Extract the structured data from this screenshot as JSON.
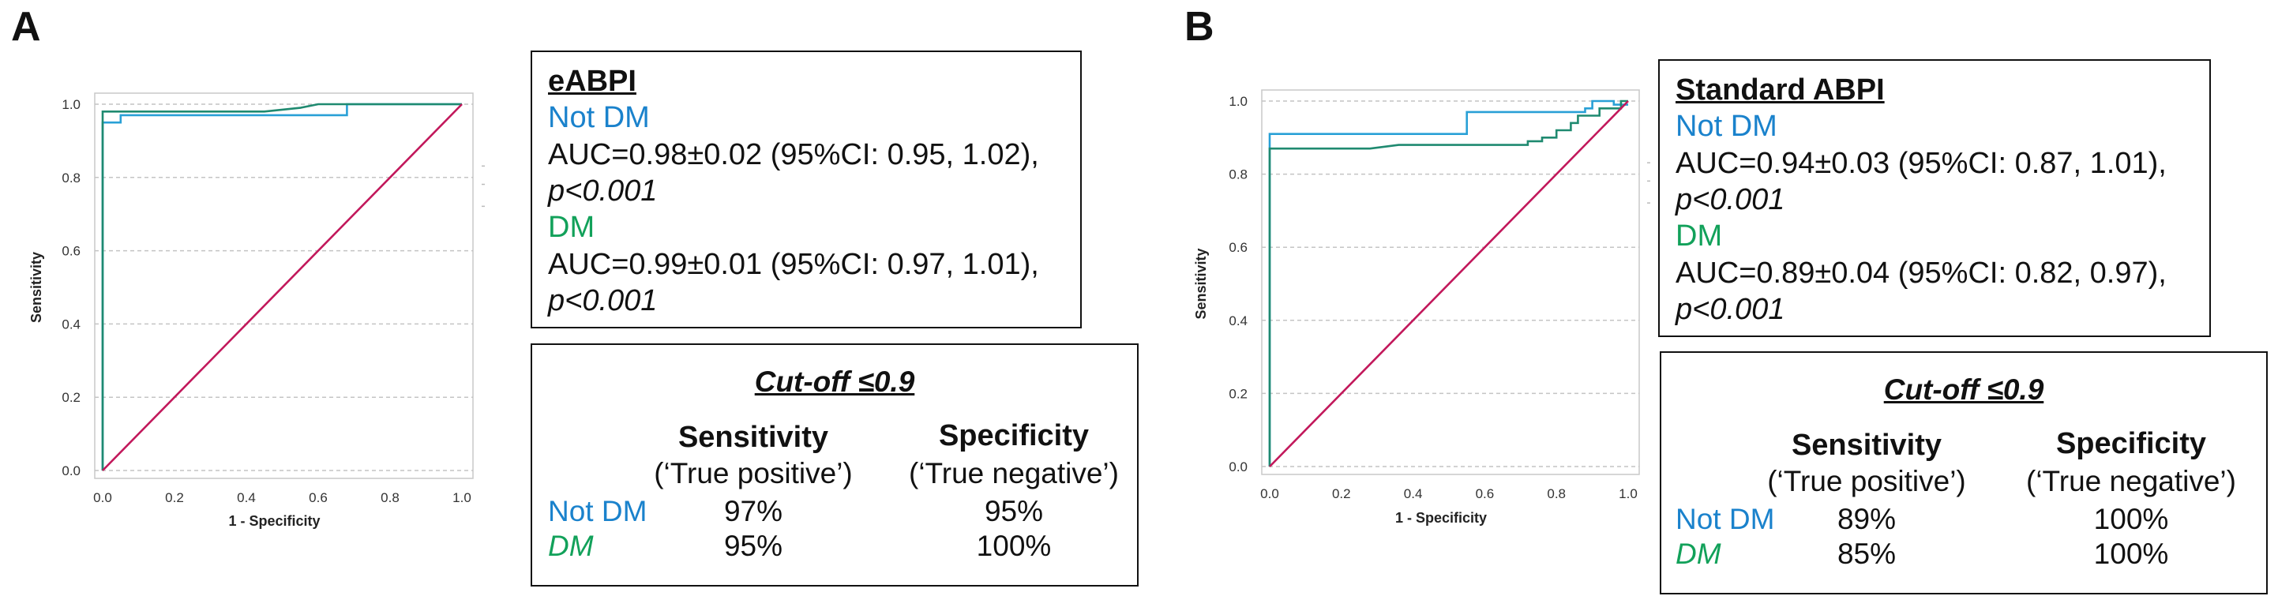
{
  "chart_data": [
    {
      "type": "line",
      "panel": "A",
      "title": "",
      "xlabel": "1 - Specificity",
      "ylabel": "Sensitivity",
      "xlim": [
        0,
        1
      ],
      "ylim": [
        0,
        1
      ],
      "x_ticks": [
        "0.0",
        "0.2",
        "0.4",
        "0.6",
        "0.8",
        "1.0"
      ],
      "y_ticks": [
        "0.0",
        "0.2",
        "0.4",
        "0.6",
        "0.8",
        "1.0"
      ],
      "grid": "horizontal dashed",
      "series": [
        {
          "name": "Not DM",
          "color": "#29a0d6",
          "points": [
            [
              0,
              0
            ],
            [
              0,
              0.95
            ],
            [
              0.05,
              0.95
            ],
            [
              0.05,
              0.97
            ],
            [
              0.68,
              0.97
            ],
            [
              0.68,
              1.0
            ],
            [
              1.0,
              1.0
            ]
          ]
        },
        {
          "name": "DM",
          "color": "#1f8a70",
          "points": [
            [
              0,
              0
            ],
            [
              0,
              0.98
            ],
            [
              0.45,
              0.98
            ],
            [
              0.55,
              0.99
            ],
            [
              0.6,
              1.0
            ],
            [
              1.0,
              1.0
            ]
          ]
        },
        {
          "name": "Reference line",
          "color": "#c2185b",
          "points": [
            [
              0,
              0
            ],
            [
              1,
              1
            ]
          ]
        }
      ]
    },
    {
      "type": "line",
      "panel": "B",
      "title": "",
      "xlabel": "1 - Specificity",
      "ylabel": "Sensitivity",
      "xlim": [
        0,
        1
      ],
      "ylim": [
        0,
        1
      ],
      "x_ticks": [
        "0.0",
        "0.2",
        "0.4",
        "0.6",
        "0.8",
        "1.0"
      ],
      "y_ticks": [
        "0.0",
        "0.2",
        "0.4",
        "0.6",
        "0.8",
        "1.0"
      ],
      "grid": "horizontal dashed",
      "series": [
        {
          "name": "Not DM",
          "color": "#29a0d6",
          "points": [
            [
              0,
              0
            ],
            [
              0,
              0.91
            ],
            [
              0.55,
              0.91
            ],
            [
              0.55,
              0.97
            ],
            [
              0.88,
              0.97
            ],
            [
              0.88,
              0.98
            ],
            [
              0.9,
              0.98
            ],
            [
              0.9,
              1.0
            ],
            [
              0.96,
              1.0
            ],
            [
              0.96,
              0.99
            ],
            [
              1.0,
              0.99
            ]
          ]
        },
        {
          "name": "DM",
          "color": "#1f8a70",
          "points": [
            [
              0,
              0
            ],
            [
              0,
              0.87
            ],
            [
              0.28,
              0.87
            ],
            [
              0.36,
              0.88
            ],
            [
              0.72,
              0.88
            ],
            [
              0.72,
              0.89
            ],
            [
              0.76,
              0.89
            ],
            [
              0.76,
              0.9
            ],
            [
              0.8,
              0.9
            ],
            [
              0.8,
              0.92
            ],
            [
              0.84,
              0.92
            ],
            [
              0.84,
              0.94
            ],
            [
              0.86,
              0.94
            ],
            [
              0.86,
              0.96
            ],
            [
              0.92,
              0.96
            ],
            [
              0.92,
              0.98
            ],
            [
              0.98,
              0.98
            ],
            [
              0.98,
              1.0
            ],
            [
              1.0,
              1.0
            ]
          ]
        },
        {
          "name": "Reference line",
          "color": "#c2185b",
          "points": [
            [
              0,
              0
            ],
            [
              1,
              1
            ]
          ]
        }
      ]
    }
  ],
  "panels": {
    "A": {
      "letter": "A",
      "stats": {
        "title": "eABPI",
        "notdm_label": "Not DM",
        "notdm_auc": "AUC=0.98±0.02 (95%CI: 0.95, 1.02),",
        "notdm_p": "p<0.001",
        "dm_label": "DM",
        "dm_auc": "AUC=0.99±0.01 (95%CI: 0.97, 1.01),",
        "dm_p": "p<0.001"
      },
      "cutoff": {
        "title": "Cut-off ≤0.9",
        "sens_header": "Sensitivity",
        "sens_sub": "(‘True positive’)",
        "spec_header": "Specificity",
        "spec_sub": "(‘True negative’)",
        "row1_label": "Not DM",
        "row1_sens": "97%",
        "row1_spec": "95%",
        "row2_label": "DM",
        "row2_sens": "95%",
        "row2_spec": "100%"
      }
    },
    "B": {
      "letter": "B",
      "stats": {
        "title": "Standard ABPI",
        "notdm_label": "Not DM",
        "notdm_auc": "AUC=0.94±0.03 (95%CI: 0.87, 1.01),",
        "notdm_p": "p<0.001",
        "dm_label": "DM",
        "dm_auc": "AUC=0.89±0.04 (95%CI: 0.82, 0.97),",
        "dm_p": "p<0.001"
      },
      "cutoff": {
        "title": "Cut-off ≤0.9",
        "sens_header": "Sensitivity",
        "sens_sub": "(‘True positive’)",
        "spec_header": "Specificity",
        "spec_sub": "(‘True negative’)",
        "row1_label": "Not DM",
        "row1_sens": "89%",
        "row1_spec": "100%",
        "row2_label": "DM",
        "row2_sens": "85%",
        "row2_spec": "100%"
      }
    }
  }
}
